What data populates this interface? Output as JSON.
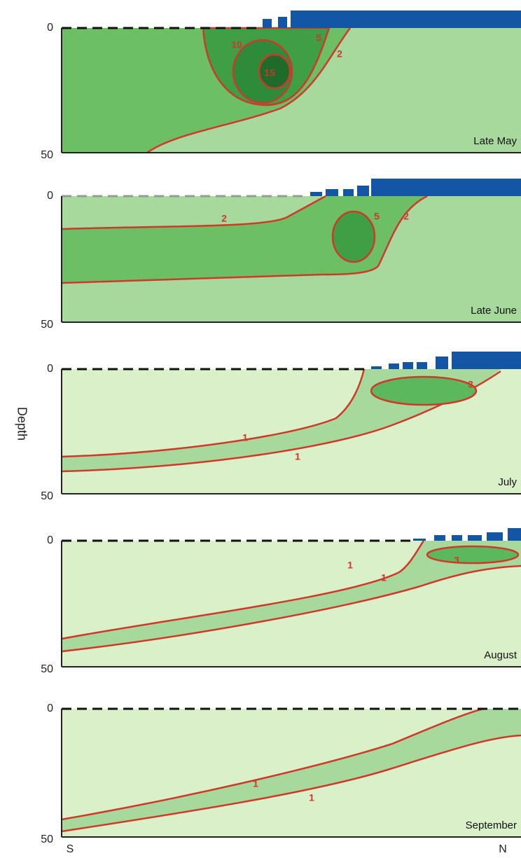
{
  "y_axis_label": "Depth",
  "x_labels": {
    "left": "S",
    "right": "N"
  },
  "panels": [
    {
      "label": "Late May",
      "ticks": [
        0,
        50
      ],
      "contour_labels": [
        "10",
        "5",
        "2",
        "15"
      ]
    },
    {
      "label": "Late June",
      "ticks": [
        0,
        50
      ],
      "contour_labels": [
        "2",
        "5",
        "2"
      ]
    },
    {
      "label": "July",
      "ticks": [
        0,
        50
      ],
      "contour_labels": [
        "1",
        "1",
        "3"
      ]
    },
    {
      "label": "August",
      "ticks": [
        0,
        50
      ],
      "contour_labels": [
        "1",
        "1",
        "3"
      ]
    },
    {
      "label": "September",
      "ticks": [
        0,
        50
      ],
      "contour_labels": [
        "1",
        "1"
      ]
    }
  ]
}
